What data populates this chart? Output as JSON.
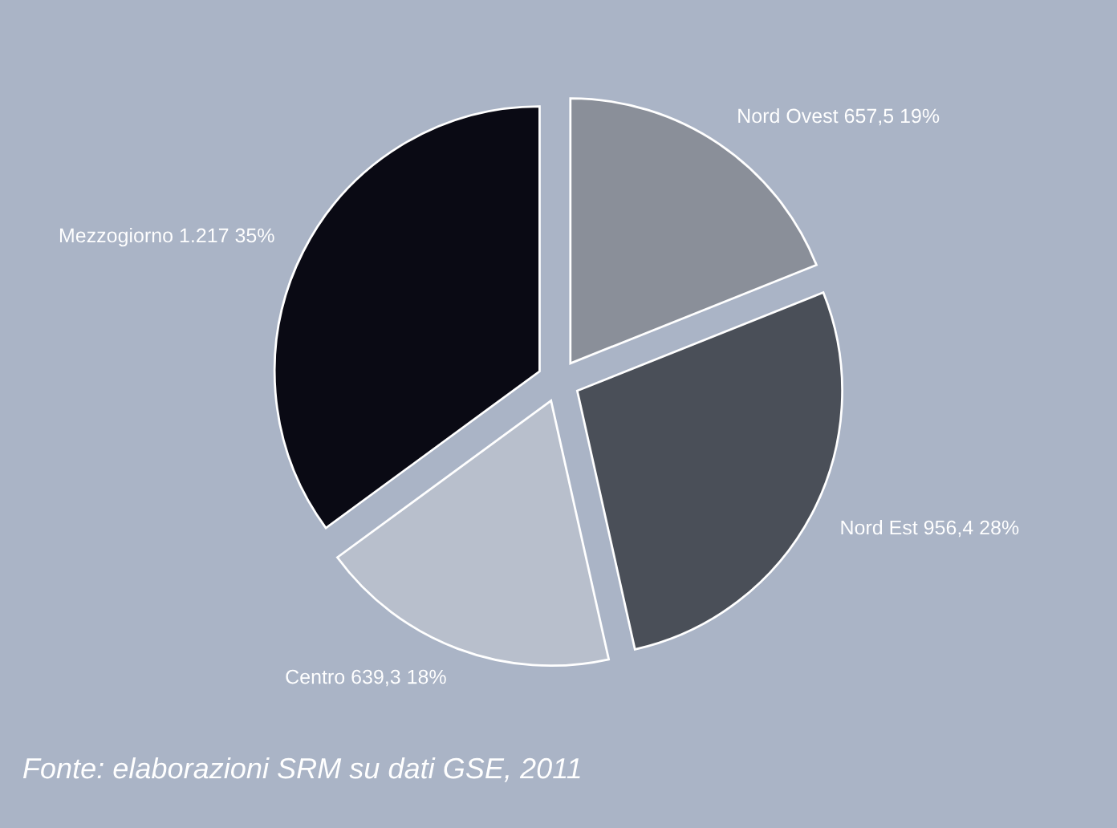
{
  "chart_data": {
    "type": "pie",
    "categories": [
      "Nord Ovest",
      "Nord Est",
      "Centro",
      "Mezzogiorno"
    ],
    "values": [
      657.5,
      956.4,
      639.3,
      1217
    ],
    "value_labels": [
      "657,5 19%",
      "956,4 28%",
      "639,3 18%",
      "1.217 35%"
    ],
    "colors": [
      "#8a8f99",
      "#4a4f58",
      "#b8bfcc",
      "#0a0a14"
    ],
    "annotations": [
      "Fonte: elaborazioni SRM su dati GSE, 2011"
    ]
  }
}
